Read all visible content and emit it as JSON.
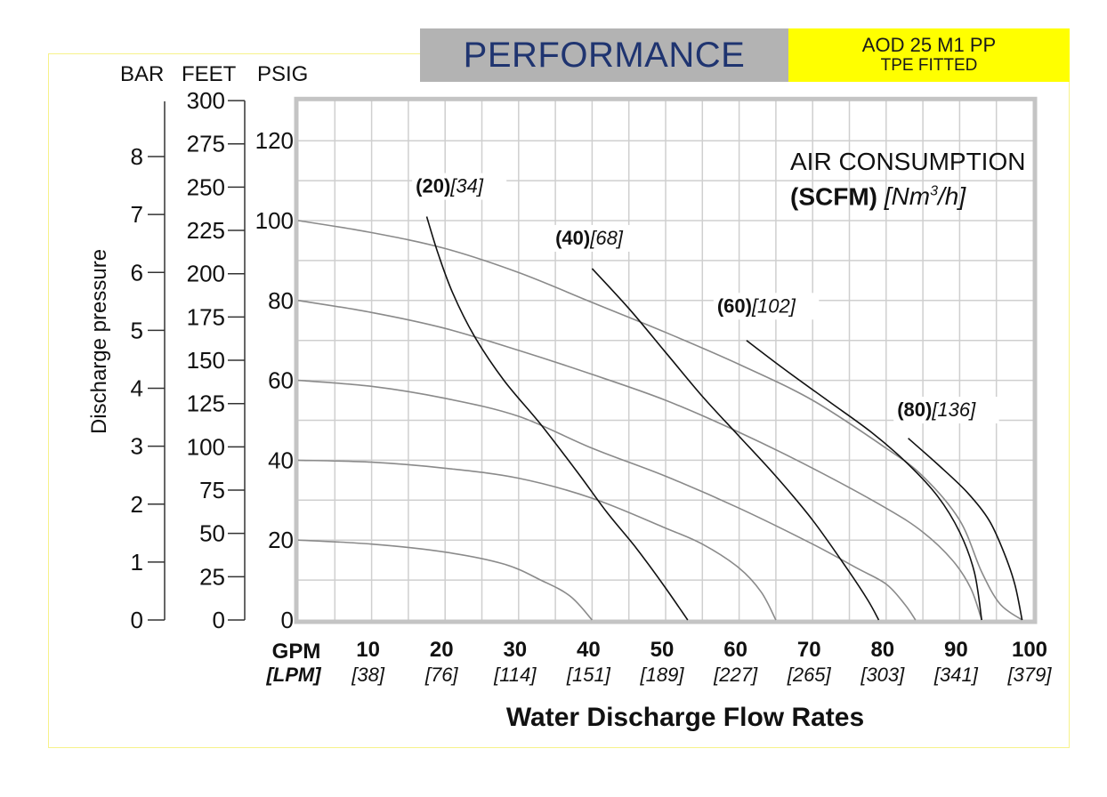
{
  "header": {
    "title": "PERFORMANCE",
    "model_line1": "AOD 25 M1 PP",
    "model_line2": "TPE FITTED",
    "title_color": "#1f3470",
    "title_bg": "#b3b3b3",
    "model_bg": "#ffff00"
  },
  "legend": {
    "line1": "AIR CONSUMPTION",
    "line2_bold": "(SCFM)",
    "line2_italic_prefix": "[Nm",
    "line2_sup": "3",
    "line2_italic_suffix": "/h]"
  },
  "chart_data": {
    "type": "line",
    "title": "PERFORMANCE",
    "xlabel": "Water Discharge Flow Rates",
    "ylabel": "Discharge pressure",
    "x_unit_primary": "GPM",
    "x_unit_secondary": "[LPM]",
    "xlim": [
      0,
      100
    ],
    "ylim": [
      0,
      130
    ],
    "grid": true,
    "x_ticks": [
      {
        "gpm": "10",
        "lpm": "[38]",
        "value": 10
      },
      {
        "gpm": "20",
        "lpm": "[76]",
        "value": 20
      },
      {
        "gpm": "30",
        "lpm": "[114]",
        "value": 30
      },
      {
        "gpm": "40",
        "lpm": "[151]",
        "value": 40
      },
      {
        "gpm": "50",
        "lpm": "[189]",
        "value": 50
      },
      {
        "gpm": "60",
        "lpm": "[227]",
        "value": 60
      },
      {
        "gpm": "70",
        "lpm": "[265]",
        "value": 70
      },
      {
        "gpm": "80",
        "lpm": "[303]",
        "value": 80
      },
      {
        "gpm": "90",
        "lpm": "[341]",
        "value": 90
      },
      {
        "gpm": "100",
        "lpm": "[379]",
        "value": 100
      }
    ],
    "y_axes": [
      {
        "name": "BAR",
        "ticks": [
          0,
          1,
          2,
          3,
          4,
          5,
          6,
          7,
          8
        ],
        "psig_per_unit": 14.5038
      },
      {
        "name": "FEET",
        "ticks": [
          0,
          25,
          50,
          75,
          100,
          125,
          150,
          175,
          200,
          225,
          250,
          275,
          300
        ],
        "psig_per_unit": 0.4335
      },
      {
        "name": "PSIG",
        "ticks": [
          0,
          20,
          40,
          60,
          80,
          100,
          120
        ],
        "psig_per_unit": 1
      }
    ],
    "pressure_series": [
      {
        "name": "100 PSIG",
        "points": [
          [
            0,
            100
          ],
          [
            10,
            97
          ],
          [
            20,
            93
          ],
          [
            30,
            87
          ],
          [
            40,
            79.5
          ],
          [
            50,
            72
          ],
          [
            60,
            64
          ],
          [
            70,
            55
          ],
          [
            80,
            43
          ],
          [
            85,
            36
          ],
          [
            90,
            25
          ],
          [
            93,
            12
          ],
          [
            95.5,
            4
          ],
          [
            98.5,
            0
          ]
        ]
      },
      {
        "name": "80 PSIG",
        "points": [
          [
            0,
            80
          ],
          [
            10,
            77
          ],
          [
            20,
            73
          ],
          [
            30,
            67.5
          ],
          [
            40,
            61.5
          ],
          [
            50,
            55
          ],
          [
            60,
            47
          ],
          [
            70,
            38
          ],
          [
            80,
            28
          ],
          [
            85,
            22
          ],
          [
            89,
            15
          ],
          [
            91.5,
            8
          ],
          [
            93,
            0
          ]
        ]
      },
      {
        "name": "60 PSIG",
        "points": [
          [
            0,
            60
          ],
          [
            10,
            58.5
          ],
          [
            20,
            55.5
          ],
          [
            30,
            51
          ],
          [
            40,
            43
          ],
          [
            50,
            36
          ],
          [
            60,
            28
          ],
          [
            70,
            19
          ],
          [
            76,
            13
          ],
          [
            80,
            9
          ],
          [
            82.5,
            4
          ],
          [
            84,
            0
          ]
        ]
      },
      {
        "name": "40 PSIG",
        "points": [
          [
            0,
            40
          ],
          [
            10,
            39.5
          ],
          [
            20,
            38
          ],
          [
            30,
            35.5
          ],
          [
            40,
            30.5
          ],
          [
            50,
            23
          ],
          [
            55,
            19
          ],
          [
            60,
            13
          ],
          [
            63,
            7
          ],
          [
            65,
            0
          ]
        ]
      },
      {
        "name": "20 PSIG",
        "points": [
          [
            0,
            20
          ],
          [
            10,
            19
          ],
          [
            20,
            17
          ],
          [
            28,
            14
          ],
          [
            33,
            10
          ],
          [
            37,
            6
          ],
          [
            40,
            0
          ]
        ]
      }
    ],
    "air_series": [
      {
        "name": "20 SCFM",
        "label_bold": "(20)",
        "label_italic": "[34]",
        "points": [
          [
            17.5,
            101
          ],
          [
            19,
            92
          ],
          [
            21,
            82
          ],
          [
            24,
            71
          ],
          [
            28,
            60
          ],
          [
            33,
            49
          ],
          [
            38,
            37
          ],
          [
            42,
            27
          ],
          [
            46,
            18
          ],
          [
            50,
            8
          ],
          [
            53,
            0
          ]
        ]
      },
      {
        "name": "40 SCFM",
        "label_bold": "(40)",
        "label_italic": "[68]",
        "points": [
          [
            40,
            88
          ],
          [
            45,
            78
          ],
          [
            50,
            67
          ],
          [
            55,
            56
          ],
          [
            60,
            46
          ],
          [
            65,
            36
          ],
          [
            70,
            25
          ],
          [
            75,
            12
          ],
          [
            77.5,
            5
          ],
          [
            79,
            0
          ]
        ]
      },
      {
        "name": "60 SCFM",
        "label_bold": "(60)",
        "label_italic": "[102]",
        "points": [
          [
            61,
            70
          ],
          [
            66,
            63
          ],
          [
            72,
            55
          ],
          [
            78,
            47
          ],
          [
            83,
            39
          ],
          [
            87,
            31
          ],
          [
            90,
            22
          ],
          [
            92,
            12
          ],
          [
            93,
            0
          ]
        ]
      },
      {
        "name": "80 SCFM",
        "label_bold": "(80)",
        "label_italic": "[136]",
        "points": [
          [
            83,
            45.5
          ],
          [
            87,
            39
          ],
          [
            91,
            32
          ],
          [
            94,
            25
          ],
          [
            96,
            17
          ],
          [
            97.5,
            9
          ],
          [
            98.5,
            0
          ]
        ]
      }
    ],
    "air_label_positions_data": [
      [
        16,
        107
      ],
      [
        35,
        94
      ],
      [
        57,
        77
      ],
      [
        81.5,
        51
      ]
    ]
  }
}
